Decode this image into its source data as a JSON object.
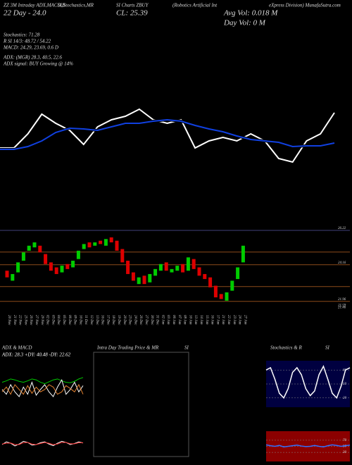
{
  "header": {
    "row1": [
      "ZZ 3M Intraday ADX,MACD,B",
      "SI,Stochastics,MR",
      "SI Charts ZBUY",
      "(Robotics Artificial Int",
      "eXpress Division) MunafaSutra.com"
    ],
    "day": "22 Day - 24.0",
    "close": "CL: 25.39",
    "avg_vol": "Avg Vol: 0.018  M",
    "day_vol": "Day Vol: 0  M"
  },
  "stats": [
    "Stochastics: 71.28",
    "R          SI 14/3: 48.72 / 54.22",
    "MACD: 24.29, 23.69, 0.6  D",
    "ADX:                     (MGR) 28.3, 40.5, 22.6",
    "ADX  signal:                        BUY Growing @ 14%"
  ],
  "chart_data": [
    {
      "type": "line",
      "name": "price-lines",
      "ylim": [
        0,
        110
      ],
      "series": [
        {
          "color": "#ffffff",
          "values": [
            30,
            30,
            50,
            78,
            65,
            55,
            35,
            60,
            70,
            75,
            85,
            70,
            65,
            70,
            30,
            40,
            45,
            40,
            50,
            40,
            15,
            10,
            40,
            50,
            80
          ]
        },
        {
          "color": "#1040e0",
          "values": [
            28,
            28,
            32,
            40,
            52,
            58,
            57,
            55,
            60,
            65,
            65,
            68,
            70,
            68,
            62,
            57,
            53,
            47,
            42,
            40,
            38,
            32,
            33,
            33,
            37
          ]
        }
      ]
    },
    {
      "type": "candlestick",
      "ylim": [
        21.4,
        26.6
      ],
      "yticks": [
        26.22,
        24.16,
        21.96,
        21.59,
        21.46
      ],
      "levels": [
        {
          "value": 26.22,
          "color": "#40407a"
        },
        {
          "value": 24.92,
          "color": "#8b4a1a"
        },
        {
          "value": 24.16,
          "color": "#8b4a1a"
        },
        {
          "value": 22.85,
          "color": "#8b4a1a"
        },
        {
          "value": 21.96,
          "color": "#8b4a1a"
        }
      ],
      "up_color": "#00cc00",
      "down_color": "#dd0000",
      "x": [
        "20 Nov",
        "21 Nov",
        "22 Nov",
        "25 Nov",
        "26 Nov",
        "27 Nov",
        "29 Nov",
        "02 Dec",
        "03 Dec",
        "04 Dec",
        "05 Dec",
        "06 Dec",
        "09 Dec",
        "10 Dec",
        "11 Dec",
        "12 Dec",
        "13 Dec",
        "16 Dec",
        "17 Dec",
        "18 Dec",
        "19 Dec",
        "20 Dec",
        "23 Dec",
        "24 Dec",
        "26 Dec",
        "27 Dec",
        "30 Dec",
        "31 Dec",
        "02 Jan",
        "03 Jan",
        "06 Jan",
        "07 Jan",
        "08 Jan",
        "10 Jan",
        "13 Jan",
        "14 Jan",
        "15 Jan",
        "16 Jan",
        "17 Jan",
        "21 Jan",
        "22 Jan",
        "23 Jan",
        "24 Jan",
        "27 Jan"
      ],
      "open": [
        23.8,
        23.2,
        23.7,
        24.4,
        25.0,
        25.2,
        25.3,
        24.8,
        24.3,
        24.0,
        23.7,
        24.2,
        24.0,
        24.5,
        25.1,
        25.5,
        25.3,
        25.6,
        25.3,
        25.8,
        25.6,
        25.1,
        24.4,
        23.7,
        23.0,
        23.5,
        23.1,
        23.5,
        23.8,
        24.3,
        23.7,
        23.8,
        24.2,
        23.8,
        24.5,
        24.0,
        23.6,
        23.4,
        22.9,
        22.4,
        22.0,
        22.6,
        23.3,
        24.3
      ],
      "close": [
        23.4,
        23.6,
        24.3,
        24.9,
        25.3,
        25.5,
        24.9,
        24.2,
        23.8,
        23.6,
        24.1,
        23.9,
        24.4,
        25.0,
        25.4,
        25.2,
        25.5,
        25.4,
        25.7,
        25.5,
        25.0,
        24.3,
        23.6,
        23.2,
        23.4,
        23.0,
        23.6,
        23.9,
        24.2,
        23.8,
        23.9,
        24.1,
        23.7,
        24.6,
        23.9,
        23.5,
        23.3,
        22.8,
        22.2,
        22.1,
        22.5,
        23.2,
        24.0,
        25.3
      ]
    },
    {
      "type": "line",
      "name": "adx",
      "title": "ADX  & MACD",
      "label": "ADX: 28.3  +DY: 40.48  -DY: 22.62",
      "ylim": [
        0,
        100
      ],
      "series": [
        {
          "color": "#00cc00",
          "values": [
            55,
            58,
            62,
            60,
            57,
            55,
            58,
            62,
            60,
            55,
            52,
            56,
            60,
            62,
            58,
            55,
            54,
            57,
            62,
            65
          ]
        },
        {
          "color": "#ffffff",
          "values": [
            40,
            30,
            50,
            35,
            25,
            45,
            30,
            55,
            28,
            40,
            50,
            35,
            25,
            45,
            60,
            30,
            40,
            55,
            35,
            48
          ]
        },
        {
          "color": "#e08030",
          "values": [
            35,
            45,
            30,
            50,
            40,
            30,
            48,
            32,
            45,
            35,
            40,
            50,
            45,
            30,
            35,
            48,
            42,
            35,
            50,
            30
          ]
        }
      ]
    },
    {
      "type": "line",
      "name": "macd",
      "ylim": [
        0,
        100
      ],
      "series": [
        {
          "color": "#ffffff",
          "values": [
            50,
            60,
            55,
            45,
            52,
            62,
            58,
            48,
            50,
            57,
            60,
            52,
            46,
            55,
            62,
            58,
            50,
            54,
            60,
            56
          ]
        },
        {
          "color": "#ff3030",
          "values": [
            52,
            55,
            56,
            50,
            50,
            57,
            58,
            52,
            50,
            54,
            58,
            55,
            50,
            52,
            58,
            58,
            53,
            53,
            57,
            57
          ]
        }
      ]
    },
    {
      "type": "box",
      "title": [
        "Intra Day Trading Price  & MR",
        "SI"
      ]
    },
    {
      "type": "line",
      "name": "stochastics",
      "title": [
        "Stochastics & R",
        "SI"
      ],
      "ylim": [
        0,
        100
      ],
      "yticks": [
        80,
        50,
        20
      ],
      "background": "#000040",
      "series": [
        {
          "color": "#ffffff",
          "values": [
            80,
            85,
            60,
            30,
            20,
            40,
            75,
            85,
            70,
            40,
            25,
            35,
            70,
            88,
            60,
            30,
            20,
            45,
            80,
            85
          ]
        }
      ]
    },
    {
      "type": "line",
      "name": "rsi",
      "ylim": [
        0,
        100
      ],
      "yticks": [
        70,
        50,
        30
      ],
      "background": "#8b0000",
      "series": [
        {
          "color": "#3070ff",
          "values": [
            55,
            52,
            50,
            53,
            48,
            50,
            52,
            54,
            51,
            49,
            50,
            53,
            50,
            48,
            52,
            55,
            53,
            50,
            52,
            54
          ]
        }
      ]
    }
  ]
}
